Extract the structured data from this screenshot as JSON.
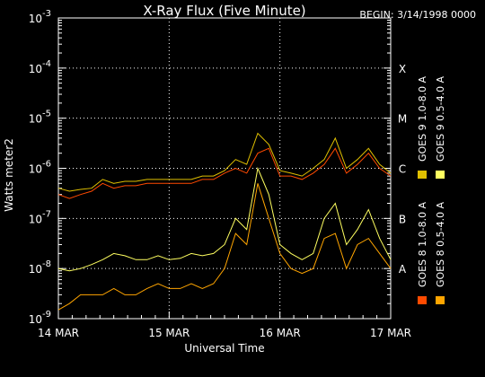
{
  "chart_data": {
    "type": "line",
    "title": "X-Ray Flux (Five Minute)",
    "subtitle": "BEGIN: 3/14/1998 0000",
    "xlabel": "Universal Time",
    "ylabel": "Watts meter2",
    "y_scale": "log",
    "ylim": [
      1e-09,
      0.001
    ],
    "y_ticks": [
      {
        "value": 1e-09,
        "label": "10",
        "exp": "-9"
      },
      {
        "value": 1e-08,
        "label": "10",
        "exp": "-8"
      },
      {
        "value": 1e-07,
        "label": "10",
        "exp": "-7"
      },
      {
        "value": 1e-06,
        "label": "10",
        "exp": "-6"
      },
      {
        "value": 1e-05,
        "label": "10",
        "exp": "-5"
      },
      {
        "value": 0.0001,
        "label": "10",
        "exp": "-4"
      },
      {
        "value": 0.001,
        "label": "10",
        "exp": "-3"
      }
    ],
    "xlim": [
      0,
      3
    ],
    "x_unit": "days since 14 MAR 1998 0000 UT",
    "x_ticks": [
      {
        "value": 0,
        "label": "14 MAR"
      },
      {
        "value": 1,
        "label": "15 MAR"
      },
      {
        "value": 2,
        "label": "16 MAR"
      },
      {
        "value": 3,
        "label": "17 MAR"
      }
    ],
    "flare_classes": [
      {
        "label": "A",
        "value": 1e-08
      },
      {
        "label": "B",
        "value": 1e-07
      },
      {
        "label": "C",
        "value": 1e-06
      },
      {
        "label": "M",
        "value": 1e-05
      },
      {
        "label": "X",
        "value": 0.0001
      }
    ],
    "grid": "dotted",
    "legend_position": "right",
    "series": [
      {
        "name": "GOES 8 1.0-8.0 A",
        "color": "#ff4a00",
        "x": [
          0,
          0.1,
          0.2,
          0.3,
          0.4,
          0.5,
          0.6,
          0.7,
          0.8,
          0.9,
          1.0,
          1.1,
          1.2,
          1.3,
          1.4,
          1.5,
          1.6,
          1.7,
          1.8,
          1.9,
          2.0,
          2.1,
          2.2,
          2.3,
          2.4,
          2.5,
          2.6,
          2.7,
          2.8,
          2.9,
          3.0
        ],
        "y": [
          3e-07,
          2.5e-07,
          3e-07,
          3.5e-07,
          5e-07,
          4e-07,
          4.5e-07,
          4.5e-07,
          5e-07,
          5e-07,
          5e-07,
          5e-07,
          5e-07,
          6e-07,
          6e-07,
          8e-07,
          1e-06,
          8e-07,
          2e-06,
          2.5e-06,
          7e-07,
          7e-07,
          6e-07,
          8e-07,
          1.2e-06,
          2.5e-06,
          8e-07,
          1.2e-06,
          2e-06,
          1e-06,
          7e-07
        ]
      },
      {
        "name": "GOES 8 0.5-4.0 A",
        "color": "#ffa500",
        "x": [
          0,
          0.1,
          0.2,
          0.3,
          0.4,
          0.5,
          0.6,
          0.7,
          0.8,
          0.9,
          1.0,
          1.1,
          1.2,
          1.3,
          1.4,
          1.5,
          1.6,
          1.7,
          1.8,
          1.9,
          2.0,
          2.1,
          2.2,
          2.3,
          2.4,
          2.5,
          2.6,
          2.7,
          2.8,
          2.9,
          3.0
        ],
        "y": [
          1.5e-09,
          2e-09,
          3e-09,
          3e-09,
          3e-09,
          4e-09,
          3e-09,
          3e-09,
          4e-09,
          5e-09,
          4e-09,
          4e-09,
          5e-09,
          4e-09,
          5e-09,
          1e-08,
          5e-08,
          3e-08,
          5e-07,
          1e-07,
          2e-08,
          1e-08,
          8e-09,
          1e-08,
          4e-08,
          5e-08,
          1e-08,
          3e-08,
          4e-08,
          2e-08,
          1e-08
        ]
      },
      {
        "name": "GOES 9 1.0-8.0 A",
        "color": "#e0c000",
        "x": [
          0,
          0.1,
          0.2,
          0.3,
          0.4,
          0.5,
          0.6,
          0.7,
          0.8,
          0.9,
          1.0,
          1.1,
          1.2,
          1.3,
          1.4,
          1.5,
          1.6,
          1.7,
          1.8,
          1.9,
          2.0,
          2.1,
          2.2,
          2.3,
          2.4,
          2.5,
          2.6,
          2.7,
          2.8,
          2.9,
          3.0
        ],
        "y": [
          4e-07,
          3.5e-07,
          3.8e-07,
          4e-07,
          6e-07,
          5e-07,
          5.5e-07,
          5.5e-07,
          6e-07,
          6e-07,
          6e-07,
          6e-07,
          6e-07,
          7e-07,
          7e-07,
          9e-07,
          1.5e-06,
          1.2e-06,
          5e-06,
          3e-06,
          9e-07,
          8e-07,
          7e-07,
          1e-06,
          1.5e-06,
          4e-06,
          1e-06,
          1.5e-06,
          2.5e-06,
          1.2e-06,
          8e-07
        ]
      },
      {
        "name": "GOES 9 0.5-4.0 A",
        "color": "#ffff60",
        "x": [
          0,
          0.1,
          0.2,
          0.3,
          0.4,
          0.5,
          0.6,
          0.7,
          0.8,
          0.9,
          1.0,
          1.1,
          1.2,
          1.3,
          1.4,
          1.5,
          1.6,
          1.7,
          1.8,
          1.9,
          2.0,
          2.1,
          2.2,
          2.3,
          2.4,
          2.5,
          2.6,
          2.7,
          2.8,
          2.9,
          3.0
        ],
        "y": [
          1e-08,
          9e-09,
          1e-08,
          1.2e-08,
          1.5e-08,
          2e-08,
          1.8e-08,
          1.5e-08,
          1.5e-08,
          1.8e-08,
          1.5e-08,
          1.6e-08,
          2e-08,
          1.8e-08,
          2e-08,
          3e-08,
          1e-07,
          6e-08,
          1e-06,
          3e-07,
          3e-08,
          2e-08,
          1.5e-08,
          2e-08,
          1e-07,
          2e-07,
          3e-08,
          6e-08,
          1.5e-07,
          4e-08,
          1.5e-08
        ]
      }
    ]
  }
}
